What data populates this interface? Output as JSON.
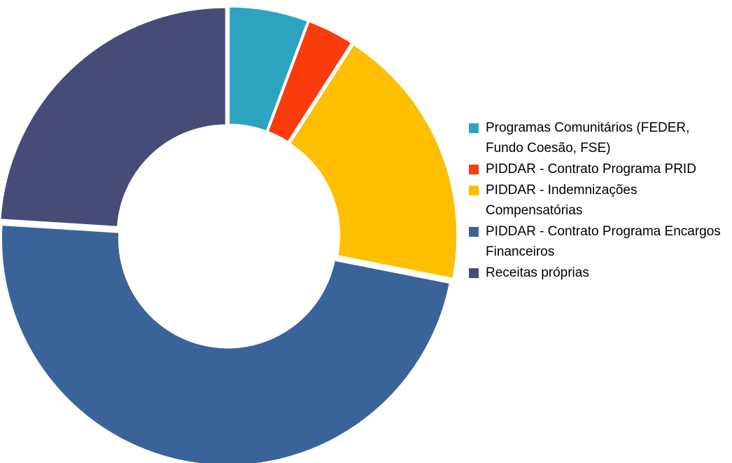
{
  "chart_data": {
    "type": "donut",
    "categories": [
      "Programas Comunitários  (FEDER, Fundo Coesão, FSE)",
      "PIDDAR - Contrato  Programa PRID",
      "PIDDAR - Indemnizações Compensatórias",
      "PIDDAR - Contrato  Programa Encargos Financeiros",
      "Receitas próprias"
    ],
    "values": [
      5.7,
      3.4,
      19,
      47.9,
      24
    ],
    "colors": [
      "#2ea3bf",
      "#fa3c0c",
      "#fdbf00",
      "#3a6399",
      "#484b78"
    ],
    "legend": "right"
  }
}
